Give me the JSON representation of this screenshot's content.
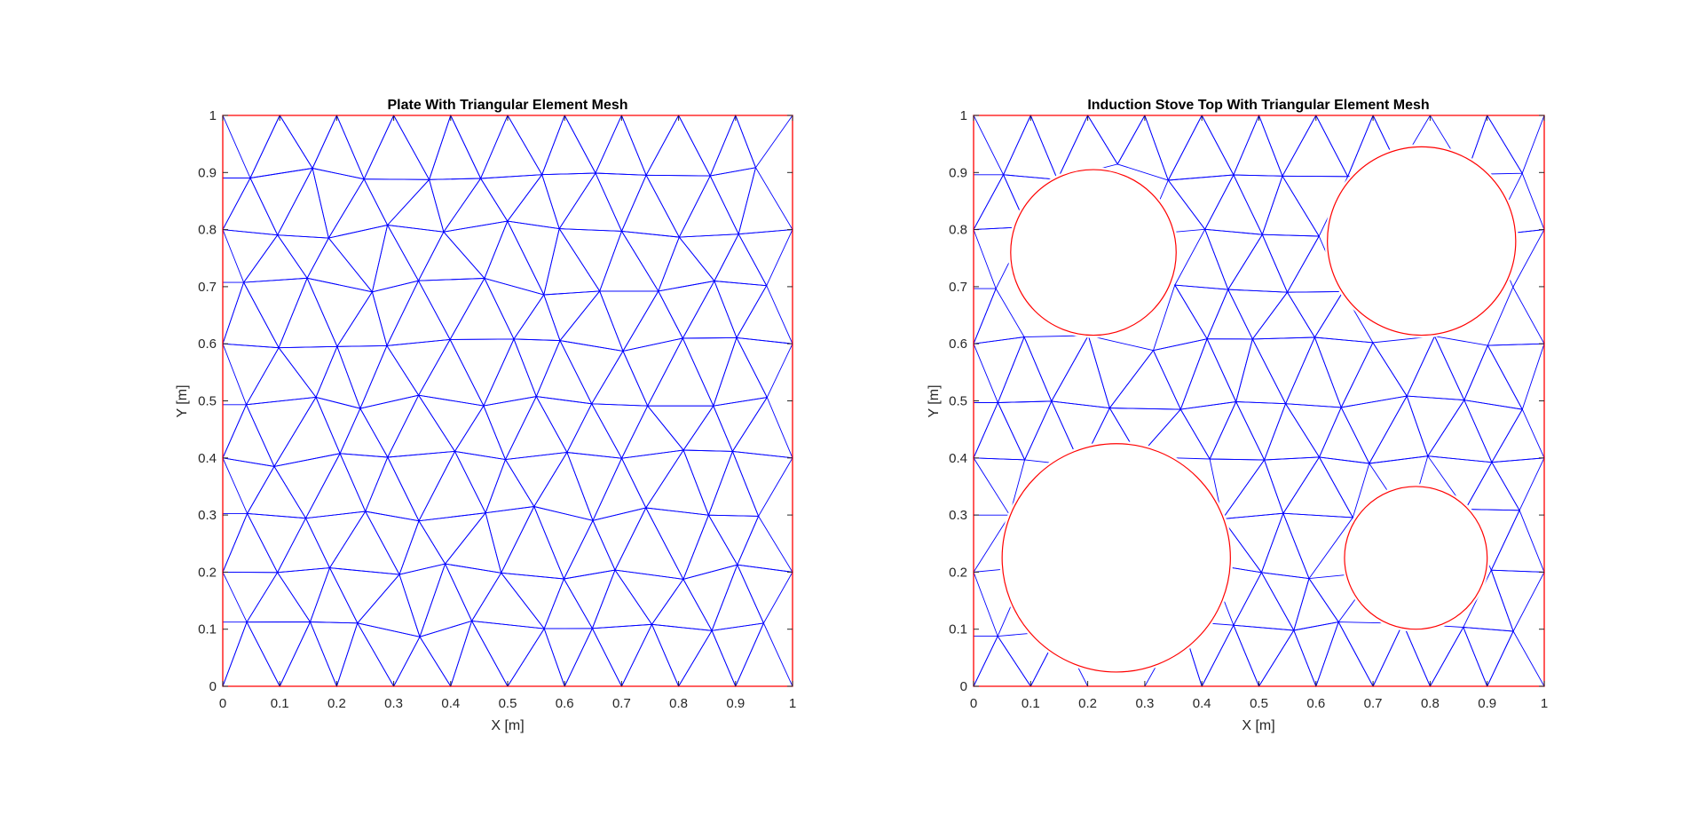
{
  "chart_data": [
    {
      "type": "mesh",
      "title": "Plate With Triangular Element Mesh",
      "xlabel": "X [m]",
      "ylabel": "Y [m]",
      "xlim": [
        0,
        1
      ],
      "ylim": [
        0,
        1
      ],
      "xticks": [
        "0",
        "0.1",
        "0.2",
        "0.3",
        "0.4",
        "0.5",
        "0.6",
        "0.7",
        "0.8",
        "0.9",
        "1"
      ],
      "yticks": [
        "0",
        "0.1",
        "0.2",
        "0.3",
        "0.4",
        "0.5",
        "0.6",
        "0.7",
        "0.8",
        "0.9",
        "1"
      ],
      "mesh_color": "#0000ff",
      "boundary_color": "#ff0000",
      "boundary": [
        [
          0,
          0
        ],
        [
          1,
          0
        ],
        [
          1,
          1
        ],
        [
          0,
          1
        ]
      ],
      "holes": []
    },
    {
      "type": "mesh",
      "title": "Induction Stove Top With Triangular Element Mesh",
      "xlabel": "X [m]",
      "ylabel": "Y [m]",
      "xlim": [
        0,
        1
      ],
      "ylim": [
        0,
        1
      ],
      "xticks": [
        "0",
        "0.1",
        "0.2",
        "0.3",
        "0.4",
        "0.5",
        "0.6",
        "0.7",
        "0.8",
        "0.9",
        "1"
      ],
      "yticks": [
        "0",
        "0.1",
        "0.2",
        "0.3",
        "0.4",
        "0.5",
        "0.6",
        "0.7",
        "0.8",
        "0.9",
        "1"
      ],
      "mesh_color": "#0000ff",
      "boundary_color": "#ff0000",
      "boundary": [
        [
          0,
          0
        ],
        [
          1,
          0
        ],
        [
          1,
          1
        ],
        [
          0,
          1
        ]
      ],
      "holes": [
        {
          "cx": 0.21,
          "cy": 0.76,
          "r": 0.145
        },
        {
          "cx": 0.785,
          "cy": 0.78,
          "r": 0.165
        },
        {
          "cx": 0.25,
          "cy": 0.225,
          "r": 0.2
        },
        {
          "cx": 0.775,
          "cy": 0.225,
          "r": 0.125
        }
      ]
    }
  ]
}
